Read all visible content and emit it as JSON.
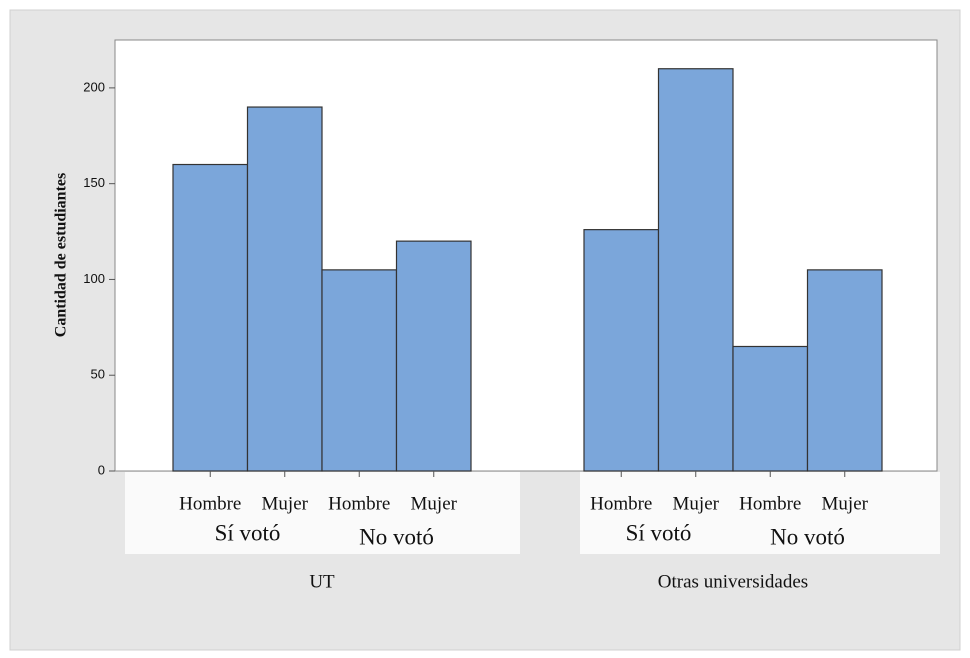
{
  "chart_data": {
    "type": "bar",
    "y_label": "Cantidad de estudiantes",
    "categories": [
      "Hombre",
      "Mujer",
      "Hombre",
      "Mujer",
      "Hombre",
      "Mujer",
      "Hombre",
      "Mujer"
    ],
    "vote_groups": [
      "Sí votó",
      "No votó",
      "Sí votó",
      "No votó"
    ],
    "universities": [
      "UT",
      "Otras universidades"
    ],
    "values": [
      160,
      190,
      105,
      120,
      126,
      210,
      65,
      105
    ],
    "color": "#7ba6da",
    "ylim": [
      0,
      225
    ],
    "yticks": [
      0,
      50,
      100,
      150,
      200
    ],
    "grid": false
  }
}
